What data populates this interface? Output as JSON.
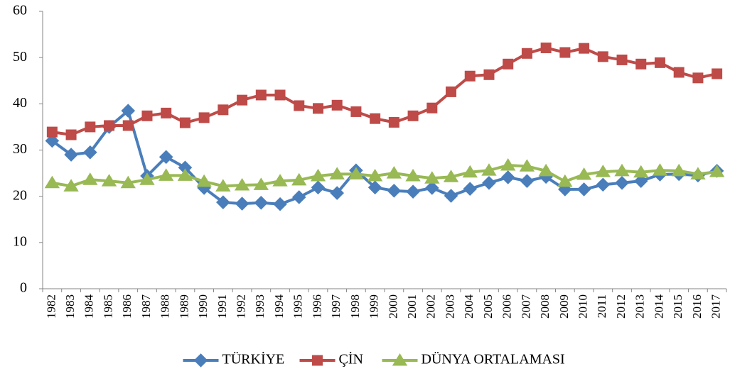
{
  "chart_data": {
    "type": "line",
    "categories": [
      "1982",
      "1983",
      "1984",
      "1985",
      "1986",
      "1987",
      "1988",
      "1989",
      "1990",
      "1991",
      "1992",
      "1993",
      "1994",
      "1995",
      "1996",
      "1997",
      "1998",
      "1999",
      "2000",
      "2001",
      "2002",
      "2003",
      "2004",
      "2005",
      "2006",
      "2007",
      "2008",
      "2009",
      "2010",
      "2011",
      "2012",
      "2013",
      "2014",
      "2015",
      "2016",
      "2017"
    ],
    "series": [
      {
        "name": "TÜRKİYE",
        "color": "#4a7ebb",
        "marker": "diamond",
        "values": [
          32,
          29,
          29.5,
          35,
          38.5,
          24.4,
          28.5,
          26.2,
          21.8,
          18.7,
          18.4,
          18.6,
          18.3,
          19.8,
          21.9,
          20.7,
          25.6,
          21.9,
          21.2,
          21,
          21.8,
          20.1,
          21.6,
          22.9,
          24.1,
          23.3,
          24.2,
          21.5,
          21.5,
          22.5,
          22.9,
          23.3,
          24.7,
          24.8,
          24.5,
          25.5
        ]
      },
      {
        "name": "ÇİN",
        "color": "#be4b48",
        "marker": "square",
        "values": [
          33.9,
          33.3,
          35,
          35.3,
          35.3,
          37.4,
          38,
          35.9,
          37,
          38.7,
          40.8,
          41.9,
          41.9,
          39.6,
          39,
          39.7,
          38.3,
          36.8,
          36,
          37.4,
          39.1,
          42.6,
          46,
          46.3,
          48.6,
          50.9,
          52.1,
          51.1,
          52,
          50.2,
          49.5,
          48.6,
          48.9,
          46.8,
          45.6,
          46.5
        ]
      },
      {
        "name": "DÜNYA ORTALAMASI",
        "color": "#98b954",
        "marker": "triangle",
        "values": [
          22.9,
          22.2,
          23.6,
          23.3,
          22.9,
          23.6,
          24.5,
          24.5,
          23.2,
          22.2,
          22.4,
          22.5,
          23.3,
          23.5,
          24.4,
          24.8,
          24.8,
          24.4,
          25,
          24.4,
          23.9,
          24.2,
          25.2,
          25.6,
          26.7,
          26.5,
          25.5,
          23.2,
          24.7,
          25.3,
          25.5,
          25.2,
          25.6,
          25.5,
          24.8,
          25.3
        ]
      }
    ],
    "ylim": [
      0,
      60
    ],
    "yticks": [
      0,
      10,
      20,
      30,
      40,
      50,
      60
    ],
    "grid": false,
    "legend": "bottom"
  }
}
